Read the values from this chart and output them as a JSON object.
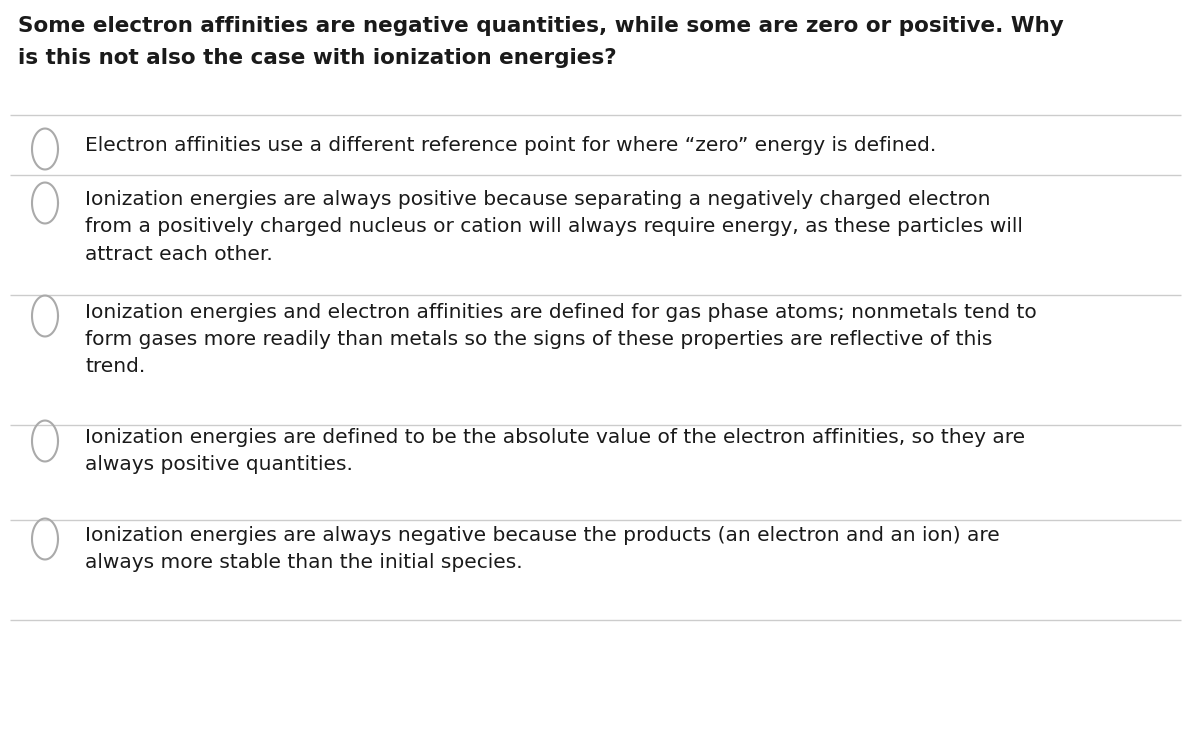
{
  "background_color": "#ffffff",
  "question_line1": "Some electron affinities are negative quantities, while some are zero or positive. Why",
  "question_line2": "is this not also the case with ionization energies?",
  "question_fontsize": 15.5,
  "question_color": "#1a1a1a",
  "options": [
    "Electron affinities use a different reference point for where “zero” energy is defined.",
    "Ionization energies are always positive because separating a negatively charged electron\nfrom a positively charged nucleus or cation will always require energy, as these particles will\nattract each other.",
    "Ionization energies and electron affinities are defined for gas phase atoms; nonmetals tend to\nform gases more readily than metals so the signs of these properties are reflective of this\ntrend.",
    "Ionization energies are defined to be the absolute value of the electron affinities, so they are\nalways positive quantities.",
    "Ionization energies are always negative because the products (an electron and an ion) are\nalways more stable than the initial species."
  ],
  "option_fontsize": 14.5,
  "option_color": "#1a1a1a",
  "radio_color": "#aaaaaa",
  "line_color": "#cccccc",
  "line_width": 1.0,
  "figsize": [
    11.91,
    7.56
  ],
  "dpi": 100
}
